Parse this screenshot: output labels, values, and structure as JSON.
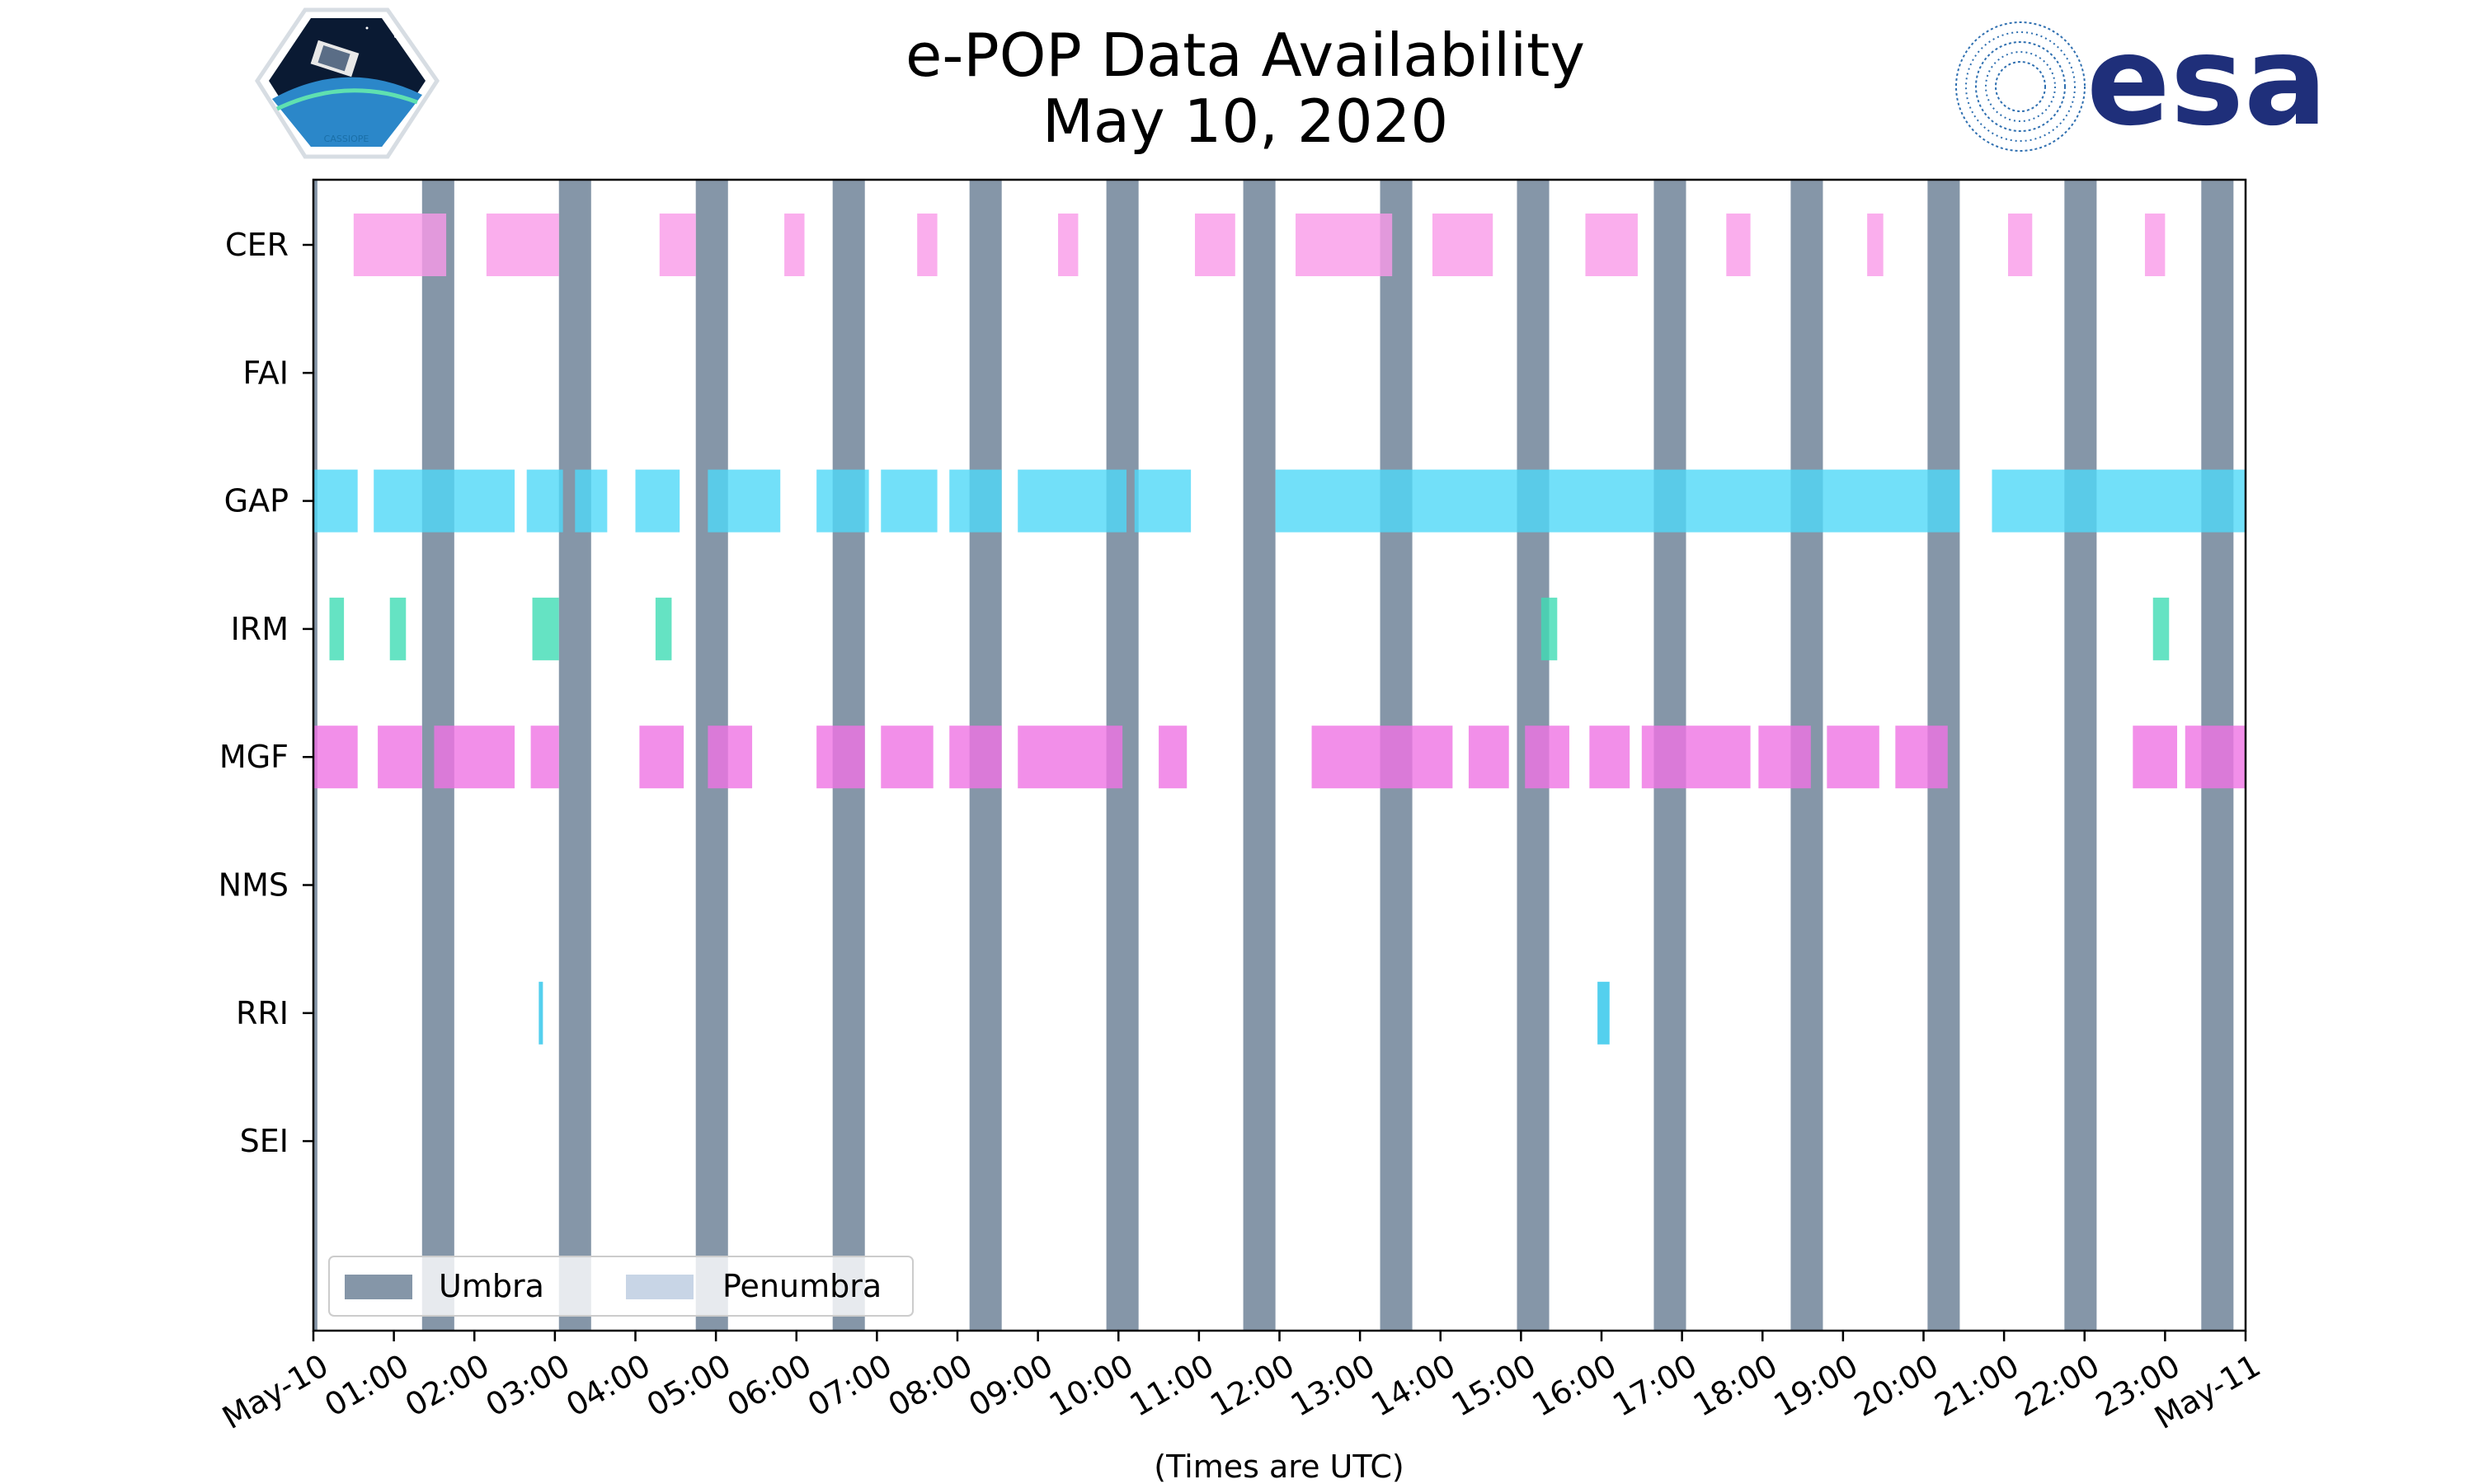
{
  "chart_data": {
    "type": "timeline",
    "title_lines": [
      "e-POP Data Availability",
      "May 10, 2020"
    ],
    "xlabel": "(Times are UTC)",
    "x_unit": "hours_utc",
    "xlim": [
      0,
      24
    ],
    "x_ticks": [
      {
        "h": 0,
        "label": "May-10"
      },
      {
        "h": 1,
        "label": "01:00"
      },
      {
        "h": 2,
        "label": "02:00"
      },
      {
        "h": 3,
        "label": "03:00"
      },
      {
        "h": 4,
        "label": "04:00"
      },
      {
        "h": 5,
        "label": "05:00"
      },
      {
        "h": 6,
        "label": "06:00"
      },
      {
        "h": 7,
        "label": "07:00"
      },
      {
        "h": 8,
        "label": "08:00"
      },
      {
        "h": 9,
        "label": "09:00"
      },
      {
        "h": 10,
        "label": "10:00"
      },
      {
        "h": 11,
        "label": "11:00"
      },
      {
        "h": 12,
        "label": "12:00"
      },
      {
        "h": 13,
        "label": "13:00"
      },
      {
        "h": 14,
        "label": "14:00"
      },
      {
        "h": 15,
        "label": "15:00"
      },
      {
        "h": 16,
        "label": "16:00"
      },
      {
        "h": 17,
        "label": "17:00"
      },
      {
        "h": 18,
        "label": "18:00"
      },
      {
        "h": 19,
        "label": "19:00"
      },
      {
        "h": 20,
        "label": "20:00"
      },
      {
        "h": 21,
        "label": "21:00"
      },
      {
        "h": 22,
        "label": "22:00"
      },
      {
        "h": 23,
        "label": "23:00"
      },
      {
        "h": 24,
        "label": "May-11"
      }
    ],
    "instruments": [
      {
        "name": "CER",
        "color": "#f99ae8",
        "intervals": [
          [
            0.5,
            1.65
          ],
          [
            2.15,
            3.05
          ],
          [
            4.3,
            4.75
          ],
          [
            5.85,
            6.1
          ],
          [
            7.5,
            7.75
          ],
          [
            9.25,
            9.5
          ],
          [
            10.95,
            11.45
          ],
          [
            12.2,
            13.4
          ],
          [
            13.9,
            14.65
          ],
          [
            15.8,
            16.45
          ],
          [
            17.55,
            17.85
          ],
          [
            19.3,
            19.5
          ],
          [
            21.05,
            21.35
          ],
          [
            22.75,
            23.0
          ]
        ]
      },
      {
        "name": "FAI",
        "color": "#9b59b6",
        "intervals": []
      },
      {
        "name": "GAP",
        "color": "#4fd8f7",
        "intervals": [
          [
            0,
            0.55
          ],
          [
            0.75,
            2.5
          ],
          [
            2.65,
            3.1
          ],
          [
            3.25,
            3.65
          ],
          [
            4.0,
            4.55
          ],
          [
            4.9,
            5.8
          ],
          [
            6.25,
            6.9
          ],
          [
            7.05,
            7.75
          ],
          [
            7.9,
            8.55
          ],
          [
            8.75,
            10.1
          ],
          [
            10.2,
            10.9
          ],
          [
            11.95,
            20.45
          ],
          [
            20.85,
            24.0
          ]
        ]
      },
      {
        "name": "IRM",
        "color": "#3edcb4",
        "intervals": [
          [
            0.2,
            0.38
          ],
          [
            0.95,
            1.15
          ],
          [
            2.72,
            3.05
          ],
          [
            4.25,
            4.45
          ],
          [
            15.25,
            15.45
          ],
          [
            22.85,
            23.05
          ]
        ]
      },
      {
        "name": "MGF",
        "color": "#ef73e4",
        "intervals": [
          [
            0,
            0.55
          ],
          [
            0.8,
            1.35
          ],
          [
            1.5,
            2.5
          ],
          [
            2.7,
            3.05
          ],
          [
            4.05,
            4.6
          ],
          [
            4.9,
            5.45
          ],
          [
            6.25,
            6.85
          ],
          [
            7.05,
            7.7
          ],
          [
            7.9,
            8.55
          ],
          [
            8.75,
            10.05
          ],
          [
            10.5,
            10.85
          ],
          [
            12.4,
            14.15
          ],
          [
            14.35,
            14.85
          ],
          [
            15.05,
            15.6
          ],
          [
            15.85,
            16.35
          ],
          [
            16.5,
            17.85
          ],
          [
            17.95,
            18.6
          ],
          [
            18.8,
            19.45
          ],
          [
            19.65,
            20.3
          ],
          [
            22.6,
            23.15
          ],
          [
            23.25,
            24.0
          ]
        ]
      },
      {
        "name": "NMS",
        "color": "#ff7f0e",
        "intervals": []
      },
      {
        "name": "RRI",
        "color": "#29c4ea",
        "intervals": [
          [
            2.8,
            2.85
          ],
          [
            15.95,
            16.1
          ]
        ]
      },
      {
        "name": "SEI",
        "color": "#888888",
        "intervals": []
      }
    ],
    "umbra_color": "#8596a8",
    "umbra_intervals": [
      [
        0,
        0.05
      ],
      [
        1.35,
        1.75
      ],
      [
        3.05,
        3.45
      ],
      [
        4.75,
        5.15
      ],
      [
        6.45,
        6.85
      ],
      [
        8.15,
        8.55
      ],
      [
        9.85,
        10.25
      ],
      [
        11.55,
        11.95
      ],
      [
        13.25,
        13.65
      ],
      [
        14.95,
        15.35
      ],
      [
        16.65,
        17.05
      ],
      [
        18.35,
        18.75
      ],
      [
        20.05,
        20.45
      ],
      [
        21.75,
        22.15
      ],
      [
        23.45,
        23.85
      ]
    ],
    "legend": {
      "placement": "lower-left",
      "entries": [
        {
          "label": "Umbra",
          "color": "#8596a8"
        },
        {
          "label": "Penumbra",
          "color": "#c8d5e6"
        }
      ]
    }
  },
  "logos": {
    "left": {
      "name": "CASSIOPE",
      "caption": "CASSIOPE"
    },
    "right": {
      "name": "esa",
      "text": "esa",
      "color": "#1f2f7a"
    }
  }
}
